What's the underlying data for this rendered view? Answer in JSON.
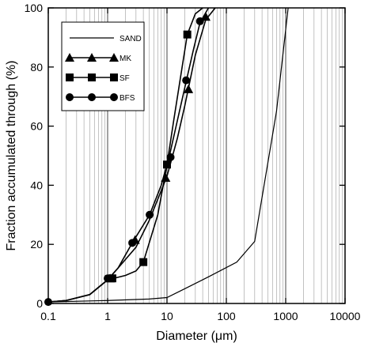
{
  "chart_data": {
    "type": "line",
    "xlabel": "Diameter (μm)",
    "ylabel": "Fraction accumulated through (%)",
    "x_scale": "log",
    "xlim": [
      0.1,
      10000
    ],
    "ylim": [
      0,
      100
    ],
    "grid": "vertical-log",
    "legend_position": "top-left",
    "x_ticks": [
      {
        "value": 0.1,
        "label": "0.1"
      },
      {
        "value": 1,
        "label": "1"
      },
      {
        "value": 10,
        "label": "10"
      },
      {
        "value": 100,
        "label": "100"
      },
      {
        "value": 1000,
        "label": "1000"
      },
      {
        "value": 10000,
        "label": "10000"
      }
    ],
    "y_ticks": [
      {
        "value": 0,
        "label": "0"
      },
      {
        "value": 20,
        "label": "20"
      },
      {
        "value": 40,
        "label": "40"
      },
      {
        "value": 60,
        "label": "60"
      },
      {
        "value": 80,
        "label": "80"
      },
      {
        "value": 100,
        "label": "100"
      }
    ],
    "series": [
      {
        "name": "SAND",
        "marker": "none",
        "points": [
          [
            0.1,
            0.5
          ],
          [
            1,
            1
          ],
          [
            5,
            1.5
          ],
          [
            10,
            2
          ],
          [
            20,
            5
          ],
          [
            50,
            9
          ],
          [
            150,
            14
          ],
          [
            300,
            21
          ],
          [
            700,
            65
          ],
          [
            1100,
            100
          ]
        ],
        "markers": []
      },
      {
        "name": "MK",
        "marker": "triangle",
        "points": [
          [
            0.1,
            0.5
          ],
          [
            0.2,
            1
          ],
          [
            0.5,
            3
          ],
          [
            1,
            8
          ],
          [
            1.5,
            12
          ],
          [
            3,
            19
          ],
          [
            5,
            28
          ],
          [
            10,
            43
          ],
          [
            15,
            56
          ],
          [
            20,
            67
          ],
          [
            30,
            84
          ],
          [
            45,
            96
          ],
          [
            65,
            100
          ]
        ],
        "markers": [
          [
            1.1,
            8.5
          ],
          [
            2.9,
            21.5
          ],
          [
            9.5,
            42.5
          ],
          [
            23,
            72.5
          ],
          [
            45,
            97
          ]
        ]
      },
      {
        "name": "SF",
        "marker": "square",
        "points": [
          [
            0.1,
            0.5
          ],
          [
            0.2,
            1
          ],
          [
            0.5,
            3
          ],
          [
            1,
            8
          ],
          [
            2,
            9.5
          ],
          [
            3,
            11
          ],
          [
            4,
            14
          ],
          [
            7,
            30
          ],
          [
            10,
            47
          ],
          [
            13,
            62
          ],
          [
            18,
            80
          ],
          [
            22,
            91
          ],
          [
            30,
            98
          ],
          [
            40,
            100
          ]
        ],
        "markers": [
          [
            1.2,
            8.5
          ],
          [
            4,
            14
          ],
          [
            10,
            47
          ],
          [
            22,
            91
          ]
        ]
      },
      {
        "name": "BFS",
        "marker": "circle",
        "points": [
          [
            0.1,
            0.5
          ],
          [
            0.2,
            1
          ],
          [
            0.5,
            3
          ],
          [
            1,
            8
          ],
          [
            1.5,
            12
          ],
          [
            2.6,
            20.5
          ],
          [
            5.1,
            30
          ],
          [
            8,
            40
          ],
          [
            11,
            50
          ],
          [
            15,
            62
          ],
          [
            21,
            75
          ],
          [
            28,
            86
          ],
          [
            36,
            95
          ],
          [
            50,
            100
          ]
        ],
        "markers": [
          [
            0.1,
            0.5
          ],
          [
            1,
            8.5
          ],
          [
            2.6,
            20.5
          ],
          [
            5.1,
            30
          ],
          [
            11.5,
            49.5
          ],
          [
            21,
            75.5
          ],
          [
            36,
            95.5
          ]
        ]
      }
    ]
  }
}
